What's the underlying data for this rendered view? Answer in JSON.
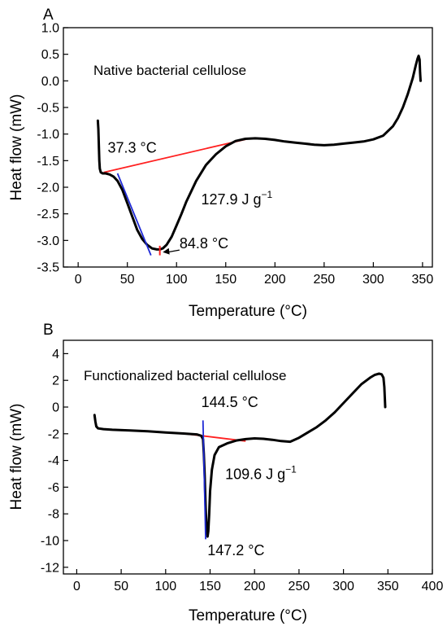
{
  "chart_data": [
    {
      "panel": "A",
      "type": "line",
      "title": "Native bacterial cellulose",
      "xlabel": "Temperature (°C)",
      "ylabel": "Heat flow (mW)",
      "xlim": [
        -15,
        360
      ],
      "ylim": [
        -3.5,
        1.0
      ],
      "xticks": [
        0,
        50,
        100,
        150,
        200,
        250,
        300,
        350
      ],
      "yticks": [
        -3.5,
        -3.0,
        -2.5,
        -2.0,
        -1.5,
        -1.0,
        -0.5,
        0.0,
        0.5,
        1.0
      ],
      "ytick_labels": [
        "-3.5",
        "-3.0",
        "-2.5",
        "-2.0",
        "-1.5",
        "-1.0",
        "-0.5",
        "0.0",
        "0.5",
        "1.0"
      ],
      "grid": false,
      "series": [
        {
          "color": "#000000",
          "x": [
            20,
            20.5,
            21,
            21.5,
            22,
            23,
            25,
            28,
            32,
            36,
            40,
            45,
            50,
            55,
            60,
            65,
            70,
            75,
            80,
            83,
            86,
            90,
            95,
            100,
            105,
            110,
            120,
            130,
            140,
            150,
            160,
            170,
            180,
            190,
            200,
            210,
            220,
            230,
            240,
            250,
            260,
            270,
            280,
            290,
            300,
            310,
            320,
            325,
            330,
            335,
            340,
            343,
            345,
            346,
            347,
            347.5,
            348
          ],
          "y": [
            -0.75,
            -0.9,
            -1.2,
            -1.5,
            -1.65,
            -1.72,
            -1.74,
            -1.74,
            -1.76,
            -1.8,
            -1.88,
            -2.05,
            -2.3,
            -2.55,
            -2.8,
            -2.97,
            -3.08,
            -3.15,
            -3.17,
            -3.17,
            -3.15,
            -3.08,
            -2.93,
            -2.72,
            -2.5,
            -2.27,
            -1.88,
            -1.58,
            -1.38,
            -1.23,
            -1.13,
            -1.09,
            -1.08,
            -1.09,
            -1.11,
            -1.14,
            -1.16,
            -1.18,
            -1.2,
            -1.21,
            -1.2,
            -1.18,
            -1.16,
            -1.14,
            -1.1,
            -1.03,
            -0.85,
            -0.7,
            -0.5,
            -0.25,
            0.05,
            0.28,
            0.42,
            0.47,
            0.4,
            0.15,
            0.0
          ]
        }
      ],
      "baseline_line": {
        "color": "#ff2020",
        "x": [
          26,
          170
        ],
        "y": [
          -1.72,
          -1.1
        ]
      },
      "onset_tangent": {
        "color": "#1f2ad6",
        "x": [
          40,
          74
        ],
        "y": [
          -1.74,
          -3.28
        ]
      },
      "peak_marker": {
        "color": "#ff2020",
        "x": 83,
        "y": [
          -3.1,
          -3.28
        ]
      },
      "annotations": [
        {
          "text": "37.3 °C",
          "x": 30,
          "y": -1.35
        },
        {
          "text": "127.9 J g",
          "superscript": "−1",
          "x": 125,
          "y": -2.32
        },
        {
          "text": "84.8 °C",
          "x": 103,
          "y": -3.15
        }
      ],
      "peak_arrow": {
        "from": [
          103,
          -3.18
        ],
        "to": [
          86,
          -3.22
        ]
      }
    },
    {
      "panel": "B",
      "type": "line",
      "title": "Functionalized bacterial cellulose",
      "xlabel": "Temperature (°C)",
      "ylabel": "Heat flow (mW)",
      "xlim": [
        -15,
        400
      ],
      "ylim": [
        -12.5,
        5
      ],
      "xticks": [
        0,
        50,
        100,
        150,
        200,
        250,
        300,
        350,
        400
      ],
      "yticks": [
        -12,
        -10,
        -8,
        -6,
        -4,
        -2,
        0,
        2,
        4
      ],
      "ytick_labels": [
        "-12",
        "-10",
        "-8",
        "-6",
        "-4",
        "-2",
        "0",
        "2",
        "4"
      ],
      "grid": false,
      "series": [
        {
          "color": "#000000",
          "x": [
            20,
            21,
            22,
            24,
            30,
            40,
            60,
            80,
            100,
            120,
            135,
            140,
            142,
            143,
            144,
            145,
            146,
            147.2,
            148,
            149,
            150,
            152,
            155,
            160,
            170,
            180,
            190,
            200,
            210,
            220,
            230,
            240,
            250,
            260,
            270,
            280,
            290,
            300,
            310,
            320,
            330,
            335,
            340,
            343,
            345,
            346,
            347
          ],
          "y": [
            -0.6,
            -1.1,
            -1.45,
            -1.6,
            -1.65,
            -1.7,
            -1.75,
            -1.82,
            -1.9,
            -1.98,
            -2.05,
            -2.15,
            -2.4,
            -3.5,
            -5.2,
            -7.5,
            -9.0,
            -9.7,
            -9.3,
            -8.0,
            -6.3,
            -4.7,
            -3.6,
            -3.0,
            -2.7,
            -2.5,
            -2.4,
            -2.35,
            -2.38,
            -2.45,
            -2.55,
            -2.6,
            -2.3,
            -1.9,
            -1.5,
            -1.0,
            -0.4,
            0.3,
            1.0,
            1.7,
            2.2,
            2.4,
            2.5,
            2.45,
            2.2,
            1.5,
            0.0
          ]
        }
      ],
      "baseline_line": {
        "color": "#ff2020",
        "x": [
          122,
          190
        ],
        "y": [
          -2.0,
          -2.55
        ]
      },
      "onset_tangent": {
        "color": "#1f2ad6",
        "x": [
          142,
          145
        ],
        "y": [
          -1.0,
          -9.9
        ]
      },
      "annotations": [
        {
          "text": "144.5 °C",
          "x": 140,
          "y": 0.0
        },
        {
          "text": "109.6 J g",
          "superscript": "−1",
          "x": 167,
          "y": -5.4
        },
        {
          "text": "147.2 °C",
          "x": 147,
          "y": -11.1
        }
      ]
    }
  ],
  "panel_labels": [
    "A",
    "B"
  ],
  "minus_sign": "−"
}
